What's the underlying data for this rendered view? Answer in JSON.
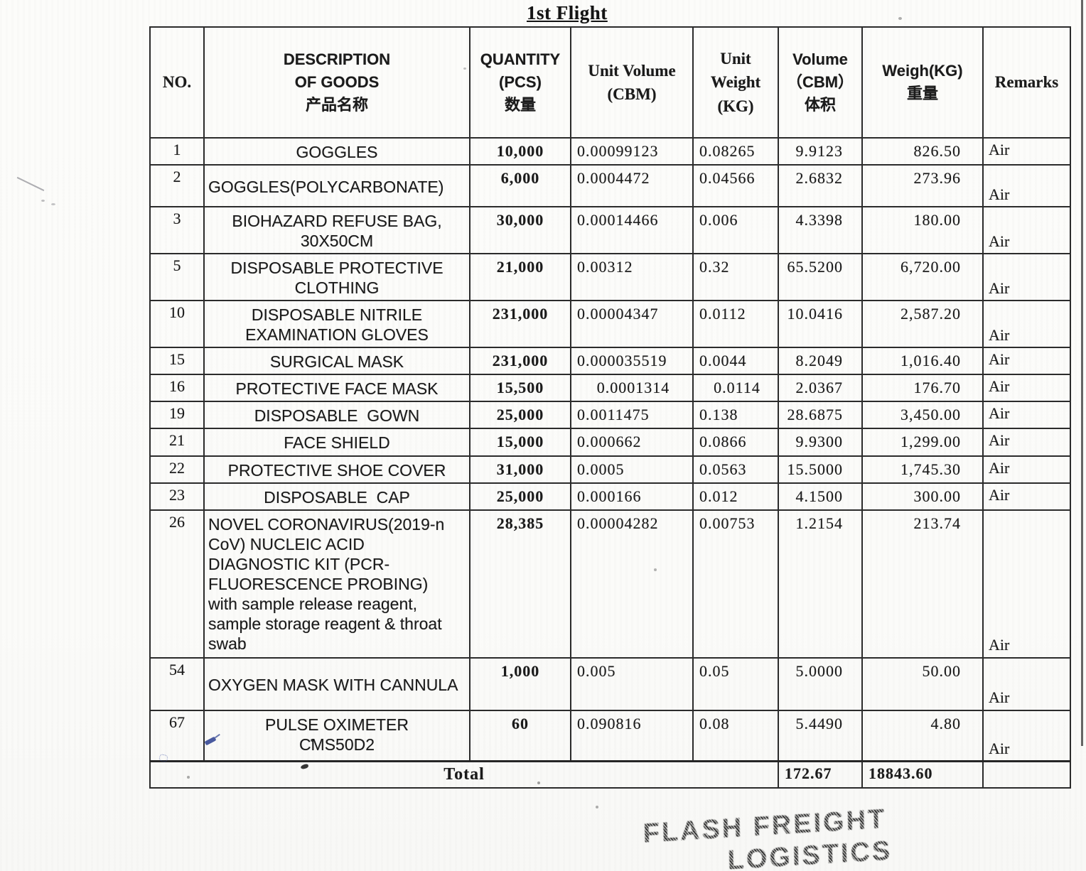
{
  "title": "1st Flight",
  "table": {
    "headers": {
      "no": "NO.",
      "description": "DESCRIPTION\nOF GOODS\n产品名称",
      "quantity": "QUANTITY\n(PCS)\n数量",
      "unit_volume": "Unit Volume\n(CBM)",
      "unit_weight": "Unit\nWeight\n(KG)",
      "volume": "Volume\n（CBM）\n体积",
      "weight": "Weigh(KG)\n重量",
      "remarks": "Remarks"
    },
    "rows": [
      {
        "no": "1",
        "description": "GOGGLES",
        "quantity": "10,000",
        "unit_volume": "0.00099123",
        "unit_weight": "0.08265",
        "volume": "9.9123",
        "weight": "826.50",
        "remarks": "Air"
      },
      {
        "no": "2",
        "description": "GOGGLES(POLYCARBONATE)",
        "quantity": "6,000",
        "unit_volume": "0.0004472",
        "unit_weight": "0.04566",
        "volume": "2.6832",
        "weight": "273.96",
        "remarks": "Air"
      },
      {
        "no": "3",
        "description": "BIOHAZARD REFUSE BAG,\n30X50CM",
        "quantity": "30,000",
        "unit_volume": "0.00014466",
        "unit_weight": "0.006",
        "volume": "4.3398",
        "weight": "180.00",
        "remarks": "Air"
      },
      {
        "no": "5",
        "description": "DISPOSABLE PROTECTIVE\nCLOTHING",
        "quantity": "21,000",
        "unit_volume": "0.00312",
        "unit_weight": "0.32",
        "volume": "65.5200",
        "weight": "6,720.00",
        "remarks": "Air"
      },
      {
        "no": "10",
        "description": "DISPOSABLE NITRILE\nEXAMINATION GLOVES",
        "quantity": "231,000",
        "unit_volume": "0.00004347",
        "unit_weight": "0.0112",
        "volume": "10.0416",
        "weight": "2,587.20",
        "remarks": "Air"
      },
      {
        "no": "15",
        "description": "SURGICAL MASK",
        "quantity": "231,000",
        "unit_volume": "0.000035519",
        "unit_weight": "0.0044",
        "volume": "8.2049",
        "weight": "1,016.40",
        "remarks": "Air"
      },
      {
        "no": "16",
        "description": "PROTECTIVE FACE MASK",
        "quantity": "15,500",
        "unit_volume": "0.0001314",
        "unit_weight": "0.0114",
        "volume": "2.0367",
        "weight": "176.70",
        "remarks": "Air"
      },
      {
        "no": "19",
        "description": "DISPOSABLE  GOWN",
        "quantity": "25,000",
        "unit_volume": "0.0011475",
        "unit_weight": "0.138",
        "volume": "28.6875",
        "weight": "3,450.00",
        "remarks": "Air"
      },
      {
        "no": "21",
        "description": "FACE SHIELD",
        "quantity": "15,000",
        "unit_volume": "0.000662",
        "unit_weight": "0.0866",
        "volume": "9.9300",
        "weight": "1,299.00",
        "remarks": "Air"
      },
      {
        "no": "22",
        "description": "PROTECTIVE SHOE COVER",
        "quantity": "31,000",
        "unit_volume": "0.0005",
        "unit_weight": "0.0563",
        "volume": "15.5000",
        "weight": "1,745.30",
        "remarks": "Air"
      },
      {
        "no": "23",
        "description": "DISPOSABLE  CAP",
        "quantity": "25,000",
        "unit_volume": "0.000166",
        "unit_weight": "0.012",
        "volume": "4.1500",
        "weight": "300.00",
        "remarks": "Air"
      },
      {
        "no": "26",
        "description": "NOVEL CORONAVIRUS(2019-n\nCoV) NUCLEIC ACID\nDIAGNOSTIC KIT (PCR-\nFLUORESCENCE PROBING)\nwith sample release reagent,\nsample storage reagent & throat\nswab",
        "quantity": "28,385",
        "unit_volume": "0.00004282",
        "unit_weight": "0.00753",
        "volume": "1.2154",
        "weight": "213.74",
        "remarks": "Air"
      },
      {
        "no": "54",
        "description": "OXYGEN MASK WITH CANNULA",
        "quantity": "1,000",
        "unit_volume": "0.005",
        "unit_weight": "0.05",
        "volume": "5.0000",
        "weight": "50.00",
        "remarks": "Air"
      },
      {
        "no": "67",
        "description": "PULSE OXIMETER\nCMS50D2",
        "quantity": "60",
        "unit_volume": "0.090816",
        "unit_weight": "0.08",
        "volume": "5.4490",
        "weight": "4.80",
        "remarks": "Air"
      }
    ],
    "total": {
      "label": "Total",
      "volume": "172.67",
      "weight": "18843.60"
    }
  },
  "stamp": {
    "line1": "FLASH FREIGHT",
    "line2": "LOGISTICS"
  },
  "colors": {
    "ink": "#1b1b1b",
    "border": "#2b2b2b",
    "paper": "#fcfcfa",
    "stamp_ink": "#141414",
    "pen_blue": "#2a3d8f"
  }
}
